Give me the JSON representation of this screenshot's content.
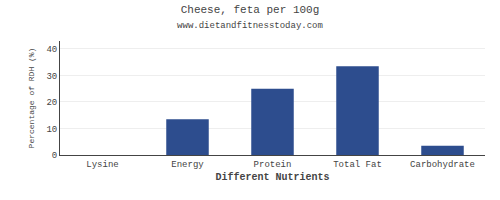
{
  "chart_data": {
    "type": "bar",
    "title": "Cheese, feta per 100g",
    "subtitle": "www.dietandfitnesstoday.com",
    "xlabel": "Different Nutrients",
    "ylabel": "Percentage of RDH (%)",
    "categories": [
      "Lysine",
      "Energy",
      "Protein",
      "Total Fat",
      "Carbohydrate"
    ],
    "values": [
      0,
      13.5,
      25,
      33.5,
      3.5
    ],
    "color": "#2d4d8e",
    "ylim": [
      0,
      43
    ],
    "yticks": [
      0,
      10,
      20,
      30,
      40
    ],
    "grid": true
  }
}
